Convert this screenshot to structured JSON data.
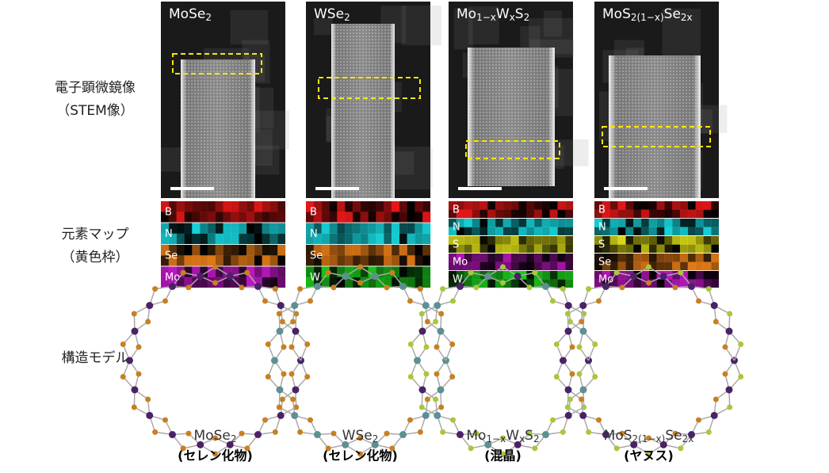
{
  "row_labels": {
    "stem": [
      "電子顕微鏡像",
      "（STEM像）"
    ],
    "maps": [
      "元素マップ",
      "（黄色枠）"
    ],
    "model": [
      "構造モデル"
    ]
  },
  "columns": [
    {
      "title": [
        {
          "t": "MoSe",
          "sub": false
        },
        {
          "t": "2",
          "sub": true
        }
      ],
      "maps": [
        {
          "label": "B",
          "color": "#ff1a1a"
        },
        {
          "label": "N",
          "color": "#19e6ee"
        },
        {
          "label": "Se",
          "color": "#ff8a1a"
        },
        {
          "label": "Mo",
          "color": "#d21ad8"
        }
      ],
      "name": [
        {
          "t": "MoSe",
          "sub": false
        },
        {
          "t": "2",
          "sub": true
        }
      ],
      "note": "(セレン化物)"
    },
    {
      "title": [
        {
          "t": "WSe",
          "sub": false
        },
        {
          "t": "2",
          "sub": true
        }
      ],
      "maps": [
        {
          "label": "B",
          "color": "#ff1a1a"
        },
        {
          "label": "N",
          "color": "#19e6ee"
        },
        {
          "label": "Se",
          "color": "#ff8a1a"
        },
        {
          "label": "W",
          "color": "#1ee01e"
        }
      ],
      "name": [
        {
          "t": "WSe",
          "sub": false
        },
        {
          "t": "2",
          "sub": true
        }
      ],
      "note": "(セレン化物)"
    },
    {
      "title": [
        {
          "t": "Mo",
          "sub": false
        },
        {
          "t": "1−x",
          "sub": true
        },
        {
          "t": "W",
          "sub": false
        },
        {
          "t": "x",
          "sub": true
        },
        {
          "t": "S",
          "sub": false
        },
        {
          "t": "2",
          "sub": true
        }
      ],
      "maps": [
        {
          "label": "B",
          "color": "#ff1a1a"
        },
        {
          "label": "N",
          "color": "#19e6ee"
        },
        {
          "label": "S",
          "color": "#f0f01a"
        },
        {
          "label": "Mo",
          "color": "#d21ad8"
        },
        {
          "label": "W",
          "color": "#1ee01e"
        }
      ],
      "name": [
        {
          "t": "Mo",
          "sub": false
        },
        {
          "t": "1−x",
          "sub": true
        },
        {
          "t": "W",
          "sub": false
        },
        {
          "t": "x",
          "sub": true
        },
        {
          "t": "S",
          "sub": false
        },
        {
          "t": "2",
          "sub": true
        }
      ],
      "note": "(混晶)"
    },
    {
      "title": [
        {
          "t": "MoS",
          "sub": false
        },
        {
          "t": "2(1−x)",
          "sub": true
        },
        {
          "t": "Se",
          "sub": false
        },
        {
          "t": "2x",
          "sub": true
        }
      ],
      "maps": [
        {
          "label": "B",
          "color": "#ff1a1a"
        },
        {
          "label": "N",
          "color": "#19e6ee"
        },
        {
          "label": "S",
          "color": "#f0f01a"
        },
        {
          "label": "Se",
          "color": "#ff8a1a"
        },
        {
          "label": "Mo",
          "color": "#d21ad8"
        }
      ],
      "name": [
        {
          "t": "MoS",
          "sub": false
        },
        {
          "t": "2(1−x)",
          "sub": true
        },
        {
          "t": "Se",
          "sub": false
        },
        {
          "t": "2x",
          "sub": true
        }
      ],
      "note": "(ヤヌス)"
    }
  ]
}
